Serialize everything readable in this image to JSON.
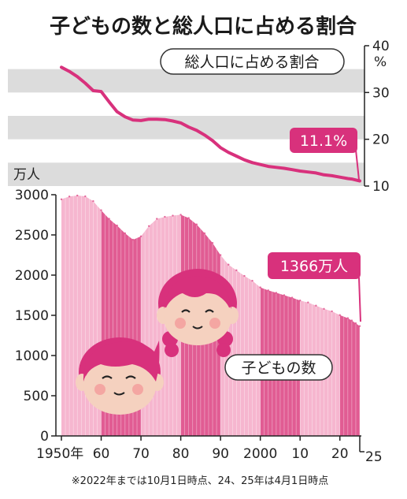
{
  "header": {
    "title": "子どもの数と総人口に占める割合"
  },
  "colors": {
    "accent": "#d8317c",
    "bar_dark": "#e15c93",
    "bar_light": "#f6b6cf",
    "band_gray": "#dcdcdc",
    "face": "#f5d1bf",
    "cheek": "#f4a6a2",
    "hair": "#d8317c"
  },
  "chart_data": [
    {
      "type": "line",
      "title": "総人口に占める割合",
      "ylabel": "%",
      "ylim": [
        10,
        40
      ],
      "yticks": [
        "10",
        "20",
        "30",
        "40"
      ],
      "grid": "alternating horizontal gray bands",
      "callout": "11.1%",
      "series": [
        {
          "x": [
            1950,
            1952,
            1954,
            1956,
            1958,
            1960,
            1962,
            1964,
            1966,
            1968,
            1970,
            1972,
            1974,
            1976,
            1978,
            1980,
            1982,
            1984,
            1986,
            1988,
            1990,
            1992,
            1994,
            1996,
            1998,
            2000,
            2002,
            2004,
            2006,
            2008,
            2010,
            2012,
            2014,
            2016,
            2018,
            2020,
            2022,
            2023,
            2024,
            2025
          ],
          "values": [
            35.4,
            34.5,
            33.4,
            32.0,
            30.4,
            30.2,
            28.0,
            25.9,
            24.8,
            24.1,
            24.0,
            24.3,
            24.3,
            24.2,
            23.9,
            23.5,
            22.6,
            21.9,
            20.9,
            19.7,
            18.2,
            17.2,
            16.4,
            15.6,
            15.0,
            14.6,
            14.2,
            14.0,
            13.8,
            13.5,
            13.2,
            13.0,
            12.8,
            12.4,
            12.2,
            11.9,
            11.6,
            11.5,
            11.3,
            11.1
          ]
        }
      ]
    },
    {
      "type": "area",
      "title": "子どもの数",
      "ylabel": "万人",
      "ylim": [
        0,
        3000
      ],
      "yticks": [
        "0",
        "500",
        "1000",
        "1500",
        "2000",
        "2500",
        "3000"
      ],
      "xlabels": [
        "1950年",
        "60",
        "70",
        "80",
        "90",
        "2000",
        "10",
        "20",
        "25"
      ],
      "callout": "1366万人",
      "shading": "alternating decade bands (dark pink 1960s, 1980s, 2000s, 2020s)",
      "series": [
        {
          "x": [
            1950,
            1952,
            1954,
            1956,
            1958,
            1960,
            1962,
            1964,
            1966,
            1968,
            1970,
            1972,
            1974,
            1976,
            1978,
            1980,
            1982,
            1984,
            1986,
            1988,
            1990,
            1992,
            1994,
            1996,
            1998,
            2000,
            2002,
            2004,
            2006,
            2008,
            2010,
            2012,
            2014,
            2016,
            2018,
            2020,
            2022,
            2023,
            2024,
            2025
          ],
          "values": [
            2943,
            2977,
            2990,
            2980,
            2920,
            2807,
            2700,
            2617,
            2520,
            2440,
            2482,
            2610,
            2700,
            2725,
            2740,
            2751,
            2710,
            2630,
            2520,
            2400,
            2249,
            2130,
            2060,
            1990,
            1930,
            1847,
            1810,
            1780,
            1750,
            1720,
            1684,
            1660,
            1620,
            1580,
            1550,
            1503,
            1465,
            1435,
            1401,
            1366
          ]
        }
      ]
    }
  ],
  "annotations": {
    "line_label": "総人口に占める割合",
    "line_callout": "11.1%",
    "area_label": "子どもの数",
    "area_callout": "1366万人",
    "left_unit": "万人",
    "right_unit": "%",
    "footnote": "※2022年までは10月1日時点、24、25年は4月1日時点"
  }
}
